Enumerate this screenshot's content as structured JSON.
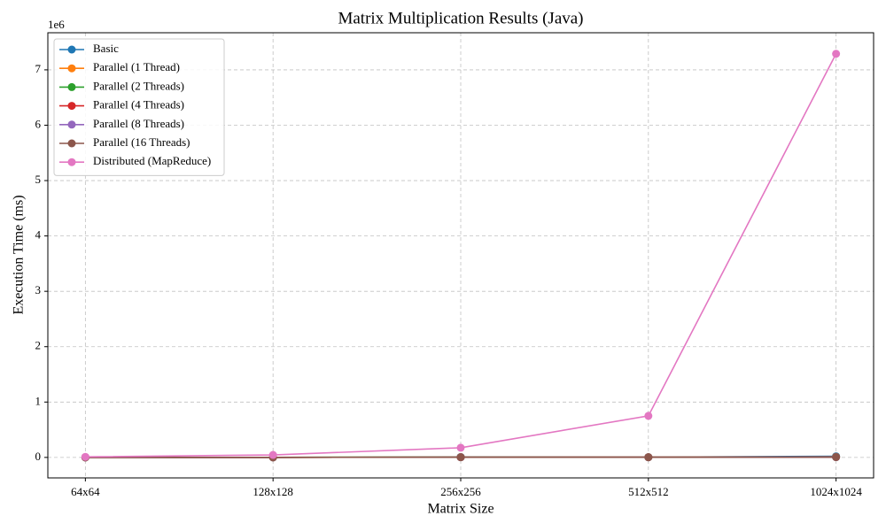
{
  "chart_data": {
    "type": "line",
    "title": "Matrix Multiplication Results (Java)",
    "x_label": "Matrix Size",
    "y_label": "Execution Time (ms)",
    "y_offset_label": "1e6",
    "categories": [
      "64x64",
      "128x128",
      "256x256",
      "512x512",
      "1024x1024"
    ],
    "series": [
      {
        "name": "Basic",
        "color": "#1f77b4",
        "values": [
          0.0001,
          0.001,
          0.008,
          0.005,
          0.02
        ]
      },
      {
        "name": "Parallel (1 Thread)",
        "color": "#ff7f0e",
        "values": [
          0.0001,
          0.001,
          0.005,
          0.004,
          0.01
        ]
      },
      {
        "name": "Parallel (2 Threads)",
        "color": "#2ca02c",
        "values": [
          0.0001,
          0.001,
          0.004,
          0.003,
          0.008
        ]
      },
      {
        "name": "Parallel (4 Threads)",
        "color": "#d62728",
        "values": [
          0.0001,
          0.001,
          0.003,
          0.003,
          0.006
        ]
      },
      {
        "name": "Parallel (8 Threads)",
        "color": "#9467bd",
        "values": [
          0.0001,
          0.001,
          0.003,
          0.002,
          0.005
        ]
      },
      {
        "name": "Parallel (16 Threads)",
        "color": "#8c564b",
        "values": [
          0.0001,
          0.001,
          0.003,
          0.002,
          0.005
        ]
      },
      {
        "name": "Distributed (MapReduce)",
        "color": "#e377c2",
        "values": [
          0.01,
          0.045,
          0.175,
          0.75,
          7.29
        ]
      }
    ],
    "ylim": [
      -0.37,
      7.67
    ],
    "yticks": [
      0,
      1,
      2,
      3,
      4,
      5,
      6,
      7
    ],
    "grid": true,
    "legend": "upper left"
  }
}
